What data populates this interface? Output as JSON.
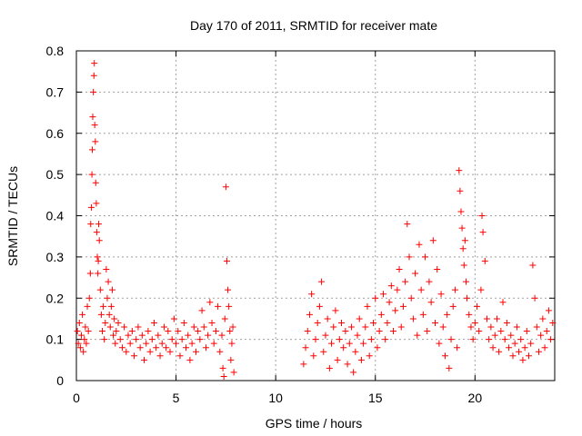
{
  "chart_data": {
    "type": "scatter",
    "title": "Day 170 of 2011, SRMTID for receiver mate",
    "xlabel": "GPS time / hours",
    "ylabel": "SRMTID / TECUs",
    "xlim": [
      0,
      24
    ],
    "ylim": [
      0,
      0.8
    ],
    "xticks": [
      0,
      5,
      10,
      15,
      20
    ],
    "xtick_labels": [
      "0",
      "5",
      "10",
      "15",
      "20"
    ],
    "yticks": [
      0,
      0.1,
      0.2,
      0.3,
      0.4,
      0.5,
      0.6,
      0.7,
      0.8
    ],
    "ytick_labels": [
      "0",
      "0.1",
      "0.2",
      "0.3",
      "0.4",
      "0.5",
      "0.6",
      "0.7",
      "0.8"
    ],
    "grid": true,
    "marker": "+",
    "color": "#ff0000",
    "series": [
      {
        "name": "SRMTID",
        "points": [
          [
            0.05,
            0.12
          ],
          [
            0.1,
            0.09
          ],
          [
            0.15,
            0.14
          ],
          [
            0.2,
            0.08
          ],
          [
            0.25,
            0.11
          ],
          [
            0.3,
            0.16
          ],
          [
            0.35,
            0.07
          ],
          [
            0.4,
            0.1
          ],
          [
            0.45,
            0.13
          ],
          [
            0.5,
            0.09
          ],
          [
            0.55,
            0.18
          ],
          [
            0.6,
            0.12
          ],
          [
            0.65,
            0.2
          ],
          [
            0.7,
            0.26
          ],
          [
            0.72,
            0.38
          ],
          [
            0.75,
            0.42
          ],
          [
            0.78,
            0.5
          ],
          [
            0.8,
            0.56
          ],
          [
            0.82,
            0.64
          ],
          [
            0.85,
            0.7
          ],
          [
            0.88,
            0.74
          ],
          [
            0.9,
            0.77
          ],
          [
            0.92,
            0.62
          ],
          [
            0.95,
            0.58
          ],
          [
            0.97,
            0.48
          ],
          [
            1.0,
            0.43
          ],
          [
            1.02,
            0.36
          ],
          [
            1.05,
            0.3
          ],
          [
            1.08,
            0.26
          ],
          [
            1.1,
            0.29
          ],
          [
            1.12,
            0.38
          ],
          [
            1.15,
            0.34
          ],
          [
            1.2,
            0.22
          ],
          [
            1.25,
            0.16
          ],
          [
            1.3,
            0.12
          ],
          [
            1.35,
            0.18
          ],
          [
            1.4,
            0.1
          ],
          [
            1.45,
            0.14
          ],
          [
            1.5,
            0.27
          ],
          [
            1.55,
            0.2
          ],
          [
            1.6,
            0.24
          ],
          [
            1.65,
            0.16
          ],
          [
            1.7,
            0.13
          ],
          [
            1.75,
            0.18
          ],
          [
            1.8,
            0.22
          ],
          [
            1.85,
            0.11
          ],
          [
            1.9,
            0.15
          ],
          [
            1.95,
            0.09
          ],
          [
            2.0,
            0.12
          ],
          [
            2.1,
            0.14
          ],
          [
            2.2,
            0.1
          ],
          [
            2.3,
            0.08
          ],
          [
            2.4,
            0.13
          ],
          [
            2.5,
            0.07
          ],
          [
            2.6,
            0.11
          ],
          [
            2.7,
            0.09
          ],
          [
            2.8,
            0.12
          ],
          [
            2.9,
            0.06
          ],
          [
            3.0,
            0.1
          ],
          [
            3.1,
            0.13
          ],
          [
            3.2,
            0.08
          ],
          [
            3.3,
            0.11
          ],
          [
            3.4,
            0.05
          ],
          [
            3.5,
            0.09
          ],
          [
            3.6,
            0.12
          ],
          [
            3.7,
            0.07
          ],
          [
            3.8,
            0.1
          ],
          [
            3.9,
            0.14
          ],
          [
            4.0,
            0.08
          ],
          [
            4.1,
            0.11
          ],
          [
            4.2,
            0.06
          ],
          [
            4.3,
            0.09
          ],
          [
            4.4,
            0.13
          ],
          [
            4.5,
            0.08
          ],
          [
            4.6,
            0.12
          ],
          [
            4.7,
            0.07
          ],
          [
            4.8,
            0.1
          ],
          [
            4.9,
            0.15
          ],
          [
            5.0,
            0.09
          ],
          [
            5.1,
            0.12
          ],
          [
            5.2,
            0.06
          ],
          [
            5.3,
            0.1
          ],
          [
            5.4,
            0.14
          ],
          [
            5.5,
            0.08
          ],
          [
            5.6,
            0.11
          ],
          [
            5.7,
            0.05
          ],
          [
            5.8,
            0.09
          ],
          [
            5.9,
            0.13
          ],
          [
            6.0,
            0.07
          ],
          [
            6.1,
            0.12
          ],
          [
            6.2,
            0.1
          ],
          [
            6.3,
            0.17
          ],
          [
            6.4,
            0.13
          ],
          [
            6.5,
            0.08
          ],
          [
            6.6,
            0.11
          ],
          [
            6.7,
            0.19
          ],
          [
            6.8,
            0.14
          ],
          [
            6.9,
            0.09
          ],
          [
            7.0,
            0.12
          ],
          [
            7.1,
            0.18
          ],
          [
            7.2,
            0.07
          ],
          [
            7.3,
            0.11
          ],
          [
            7.35,
            0.03
          ],
          [
            7.4,
            0.01
          ],
          [
            7.45,
            0.15
          ],
          [
            7.5,
            0.47
          ],
          [
            7.55,
            0.29
          ],
          [
            7.6,
            0.22
          ],
          [
            7.65,
            0.18
          ],
          [
            7.7,
            0.12
          ],
          [
            7.75,
            0.05
          ],
          [
            7.8,
            0.09
          ],
          [
            7.85,
            0.13
          ],
          [
            7.9,
            0.02
          ],
          [
            11.4,
            0.04
          ],
          [
            11.5,
            0.08
          ],
          [
            11.6,
            0.12
          ],
          [
            11.7,
            0.16
          ],
          [
            11.8,
            0.21
          ],
          [
            11.9,
            0.06
          ],
          [
            12.0,
            0.1
          ],
          [
            12.1,
            0.14
          ],
          [
            12.2,
            0.18
          ],
          [
            12.3,
            0.24
          ],
          [
            12.4,
            0.07
          ],
          [
            12.5,
            0.11
          ],
          [
            12.6,
            0.15
          ],
          [
            12.7,
            0.03
          ],
          [
            12.8,
            0.09
          ],
          [
            12.9,
            0.13
          ],
          [
            13.0,
            0.17
          ],
          [
            13.1,
            0.05
          ],
          [
            13.2,
            0.1
          ],
          [
            13.3,
            0.14
          ],
          [
            13.4,
            0.08
          ],
          [
            13.5,
            0.12
          ],
          [
            13.6,
            0.04
          ],
          [
            13.7,
            0.09
          ],
          [
            13.8,
            0.13
          ],
          [
            13.9,
            0.02
          ],
          [
            14.0,
            0.07
          ],
          [
            14.1,
            0.11
          ],
          [
            14.2,
            0.15
          ],
          [
            14.3,
            0.05
          ],
          [
            14.4,
            0.09
          ],
          [
            14.5,
            0.13
          ],
          [
            14.6,
            0.18
          ],
          [
            14.7,
            0.06
          ],
          [
            14.8,
            0.1
          ],
          [
            14.9,
            0.14
          ],
          [
            15.0,
            0.2
          ],
          [
            15.1,
            0.08
          ],
          [
            15.2,
            0.12
          ],
          [
            15.3,
            0.16
          ],
          [
            15.4,
            0.21
          ],
          [
            15.5,
            0.1
          ],
          [
            15.6,
            0.14
          ],
          [
            15.7,
            0.19
          ],
          [
            15.8,
            0.23
          ],
          [
            15.9,
            0.12
          ],
          [
            16.0,
            0.17
          ],
          [
            16.1,
            0.22
          ],
          [
            16.2,
            0.27
          ],
          [
            16.3,
            0.13
          ],
          [
            16.4,
            0.18
          ],
          [
            16.5,
            0.24
          ],
          [
            16.6,
            0.38
          ],
          [
            16.7,
            0.3
          ],
          [
            16.8,
            0.2
          ],
          [
            16.9,
            0.15
          ],
          [
            17.0,
            0.26
          ],
          [
            17.1,
            0.11
          ],
          [
            17.2,
            0.33
          ],
          [
            17.3,
            0.22
          ],
          [
            17.4,
            0.16
          ],
          [
            17.5,
            0.3
          ],
          [
            17.6,
            0.12
          ],
          [
            17.7,
            0.24
          ],
          [
            17.8,
            0.19
          ],
          [
            17.9,
            0.34
          ],
          [
            18.0,
            0.14
          ],
          [
            18.1,
            0.27
          ],
          [
            18.2,
            0.09
          ],
          [
            18.3,
            0.21
          ],
          [
            18.4,
            0.13
          ],
          [
            18.5,
            0.06
          ],
          [
            18.6,
            0.16
          ],
          [
            18.7,
            0.03
          ],
          [
            18.8,
            0.1
          ],
          [
            18.9,
            0.18
          ],
          [
            19.0,
            0.22
          ],
          [
            19.1,
            0.08
          ],
          [
            19.2,
            0.51
          ],
          [
            19.25,
            0.46
          ],
          [
            19.3,
            0.41
          ],
          [
            19.35,
            0.37
          ],
          [
            19.4,
            0.32
          ],
          [
            19.45,
            0.28
          ],
          [
            19.5,
            0.34
          ],
          [
            19.55,
            0.24
          ],
          [
            19.6,
            0.2
          ],
          [
            19.7,
            0.16
          ],
          [
            19.8,
            0.13
          ],
          [
            19.9,
            0.1
          ],
          [
            20.0,
            0.14
          ],
          [
            20.1,
            0.18
          ],
          [
            20.2,
            0.12
          ],
          [
            20.3,
            0.22
          ],
          [
            20.35,
            0.4
          ],
          [
            20.4,
            0.36
          ],
          [
            20.5,
            0.29
          ],
          [
            20.6,
            0.15
          ],
          [
            20.7,
            0.1
          ],
          [
            20.8,
            0.13
          ],
          [
            20.9,
            0.08
          ],
          [
            21.0,
            0.11
          ],
          [
            21.1,
            0.15
          ],
          [
            21.2,
            0.07
          ],
          [
            21.3,
            0.12
          ],
          [
            21.4,
            0.19
          ],
          [
            21.5,
            0.1
          ],
          [
            21.6,
            0.14
          ],
          [
            21.7,
            0.08
          ],
          [
            21.8,
            0.11
          ],
          [
            21.9,
            0.06
          ],
          [
            22.0,
            0.09
          ],
          [
            22.1,
            0.13
          ],
          [
            22.2,
            0.07
          ],
          [
            22.3,
            0.1
          ],
          [
            22.4,
            0.05
          ],
          [
            22.5,
            0.08
          ],
          [
            22.6,
            0.12
          ],
          [
            22.7,
            0.06
          ],
          [
            22.8,
            0.09
          ],
          [
            22.9,
            0.28
          ],
          [
            23.0,
            0.2
          ],
          [
            23.1,
            0.13
          ],
          [
            23.2,
            0.07
          ],
          [
            23.3,
            0.11
          ],
          [
            23.4,
            0.15
          ],
          [
            23.5,
            0.08
          ],
          [
            23.6,
            0.12
          ],
          [
            23.7,
            0.17
          ],
          [
            23.8,
            0.1
          ],
          [
            23.9,
            0.14
          ]
        ]
      }
    ]
  }
}
